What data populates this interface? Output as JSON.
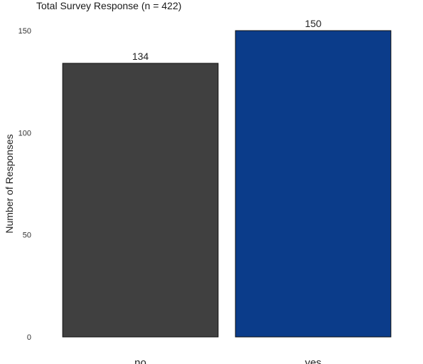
{
  "chart_data": {
    "type": "bar",
    "title": "Total Survey Response (n = 422)",
    "xlabel": "",
    "ylabel": "Number of Responses",
    "categories": [
      "no",
      "yes"
    ],
    "values": [
      134,
      150
    ],
    "value_labels": [
      "134",
      "150"
    ],
    "ylim": [
      0,
      150
    ],
    "yticks": [
      0,
      50,
      100,
      150
    ],
    "ytick_labels": [
      "0",
      "50",
      "100",
      "150"
    ],
    "grid": false,
    "legend": "none",
    "bar_colors": [
      "#404040",
      "#0b3c8a"
    ],
    "bar_edge_color": "#111111"
  }
}
